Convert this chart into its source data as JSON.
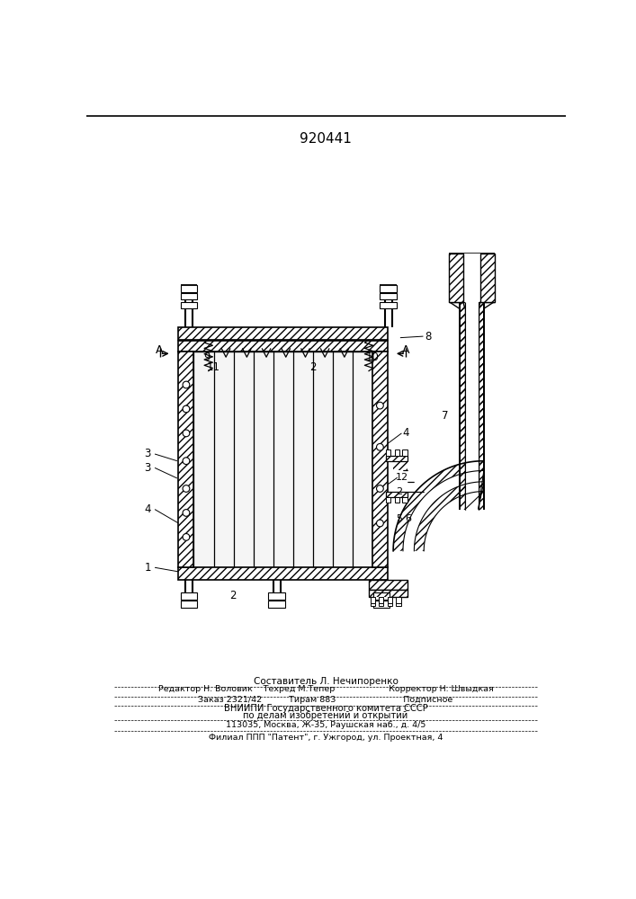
{
  "patent_number": "920441",
  "bg_color": "#ffffff",
  "footer_lines": [
    "Составитель Л. Нечипоренко",
    "Редактор Н. Воловик    Техред М.Тепер                    Корректор Н. Швыдкая",
    "Заказ 2321/42          Тирам 883                         Подписное",
    "ВНИИПИ Государственного комитета СССР",
    "по делам изобретений и открытий",
    "113035, Москва, Ж-35, Раушская наб., д. 4/5",
    "Филиал ППП \"Патент\", г. Ужгород, ул. Проектная, 4"
  ]
}
